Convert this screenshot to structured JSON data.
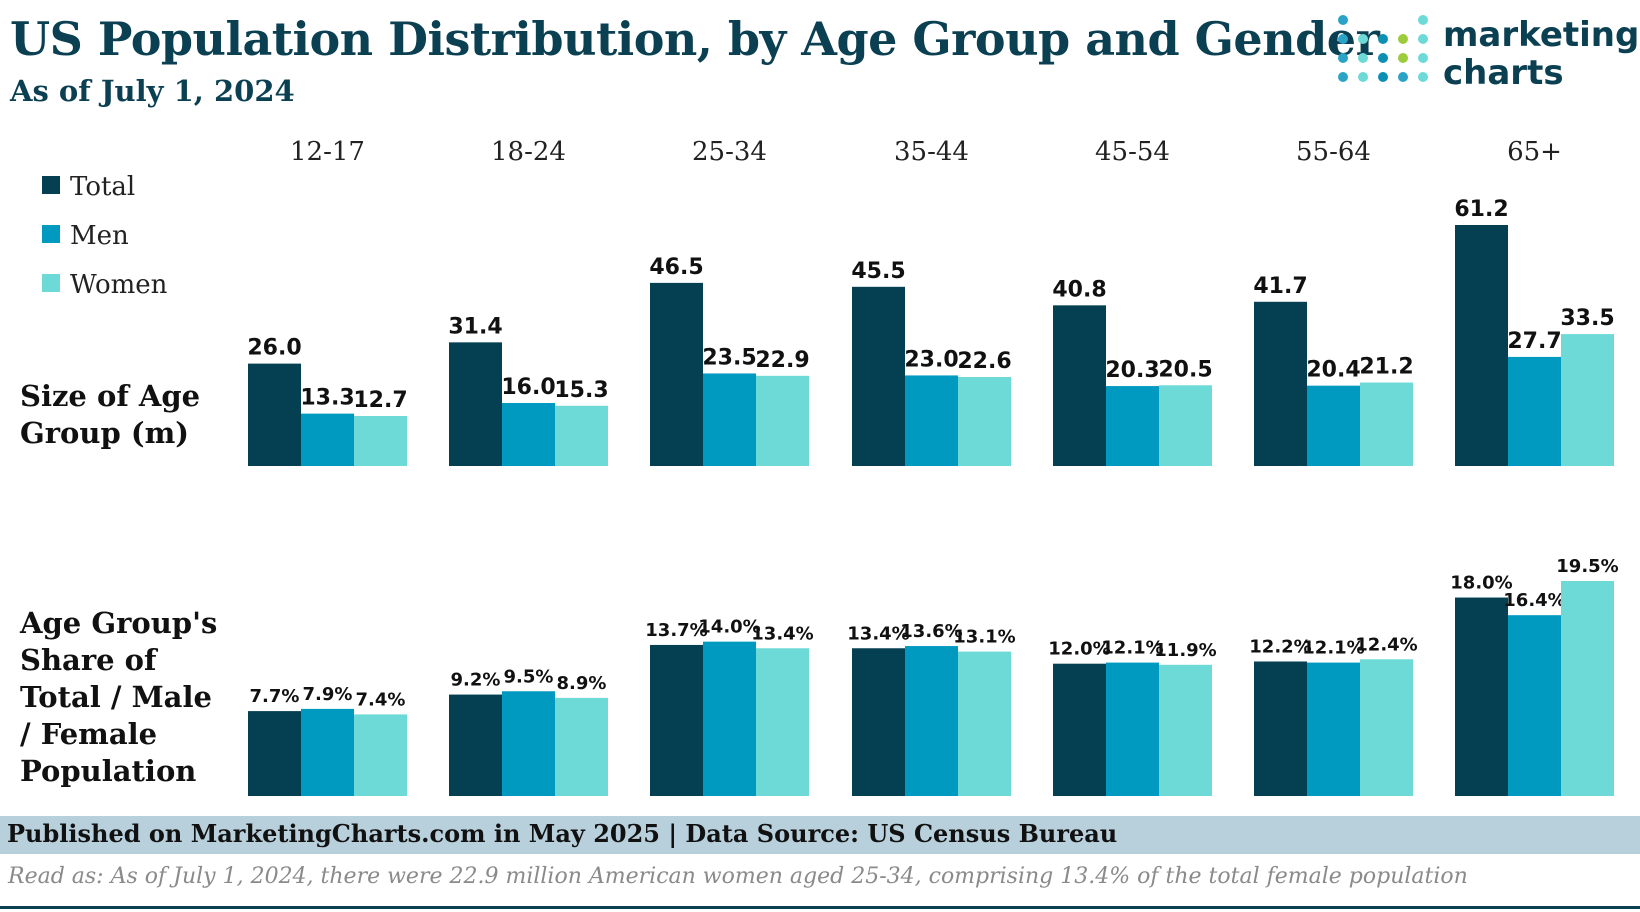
{
  "header": {
    "title": "US Population Distribution, by Age Group and Gender",
    "subtitle": "As of July 1, 2024"
  },
  "logo": {
    "line1": "marketing",
    "line2": "charts"
  },
  "legend": {
    "total": "Total",
    "men": "Men",
    "women": "Women"
  },
  "colors": {
    "total": "#043f52",
    "men": "#0099c0",
    "women": "#6ddad7",
    "brand": "#0b4052"
  },
  "row_labels": {
    "size": [
      "Size of Age",
      "Group (m)"
    ],
    "share": [
      "Age Group's",
      "Share of",
      "Total / Male",
      "/ Female",
      "Population"
    ]
  },
  "chart_data": [
    {
      "type": "bar",
      "title": "Size of Age Group (m)",
      "categories": [
        "12-17",
        "18-24",
        "25-34",
        "35-44",
        "45-54",
        "55-64",
        "65+"
      ],
      "series": [
        {
          "name": "Total",
          "values": [
            26.0,
            31.4,
            46.5,
            45.5,
            40.8,
            41.7,
            61.2
          ],
          "labels": [
            "26.0",
            "31.4",
            "46.5",
            "45.5",
            "40.8",
            "41.7",
            "61.2"
          ]
        },
        {
          "name": "Men",
          "values": [
            13.3,
            16.0,
            23.5,
            23.0,
            20.3,
            20.4,
            27.7
          ],
          "labels": [
            "13.3",
            "16.0",
            "23.5",
            "23.0",
            "20.3",
            "20.4",
            "27.7"
          ]
        },
        {
          "name": "Women",
          "values": [
            12.7,
            15.3,
            22.9,
            22.6,
            20.5,
            21.2,
            33.5
          ],
          "labels": [
            "12.7",
            "15.3",
            "22.9",
            "22.6",
            "20.5",
            "21.2",
            "33.5"
          ]
        }
      ],
      "ylim": [
        0,
        61.2
      ]
    },
    {
      "type": "bar",
      "title": "Age Group's Share of Total / Male / Female Population",
      "categories": [
        "12-17",
        "18-24",
        "25-34",
        "35-44",
        "45-54",
        "55-64",
        "65+"
      ],
      "series": [
        {
          "name": "Total",
          "values": [
            7.7,
            9.2,
            13.7,
            13.4,
            12.0,
            12.2,
            18.0
          ],
          "labels": [
            "7.7%",
            "9.2%",
            "13.7%",
            "13.4%",
            "12.0%",
            "12.2%",
            "18.0%"
          ]
        },
        {
          "name": "Men",
          "values": [
            7.9,
            9.5,
            14.0,
            13.6,
            12.1,
            12.1,
            16.4
          ],
          "labels": [
            "7.9%",
            "9.5%",
            "14.0%",
            "13.6%",
            "12.1%",
            "12.1%",
            "16.4%"
          ]
        },
        {
          "name": "Women",
          "values": [
            7.4,
            8.9,
            13.4,
            13.1,
            11.9,
            12.4,
            19.5
          ],
          "labels": [
            "7.4%",
            "8.9%",
            "13.4%",
            "13.1%",
            "11.9%",
            "12.4%",
            "19.5%"
          ]
        }
      ],
      "ylim": [
        0,
        19.5
      ]
    }
  ],
  "footer": {
    "published": "Published on MarketingCharts.com in May 2025 | Data Source: US Census Bureau",
    "read_as": "Read as: As of July 1, 2024, there were 22.9 million American women aged 25-34, comprising 13.4% of the total female population"
  }
}
